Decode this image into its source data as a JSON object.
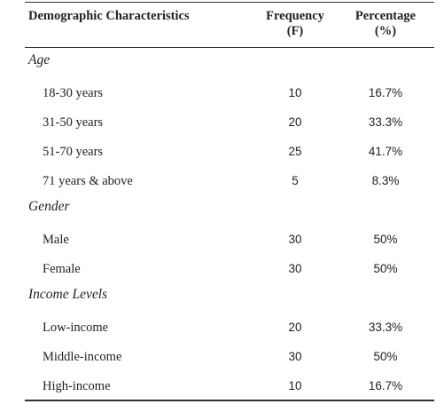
{
  "header": {
    "col1": "Demographic Characteristics",
    "col2_line1": "Frequency",
    "col2_line2": "(F)",
    "col3_line1": "Percentage",
    "col3_line2": "(%)"
  },
  "sections": [
    {
      "title": "Age",
      "rows": [
        {
          "label": "18-30 years",
          "freq": "10",
          "pct": "16.7%"
        },
        {
          "label": "31-50 years",
          "freq": "20",
          "pct": "33.3%"
        },
        {
          "label": "51-70 years",
          "freq": "25",
          "pct": "41.7%"
        },
        {
          "label": "71 years & above",
          "freq": "5",
          "pct": "8.3%"
        }
      ]
    },
    {
      "title": "Gender",
      "rows": [
        {
          "label": "Male",
          "freq": "30",
          "pct": "50%"
        },
        {
          "label": "Female",
          "freq": "30",
          "pct": "50%"
        }
      ]
    },
    {
      "title": "Income Levels",
      "rows": [
        {
          "label": "Low-income",
          "freq": "20",
          "pct": "33.3%"
        },
        {
          "label": "Middle-income",
          "freq": "30",
          "pct": "50%"
        },
        {
          "label": "High-income",
          "freq": "10",
          "pct": "16.7%"
        }
      ]
    }
  ]
}
